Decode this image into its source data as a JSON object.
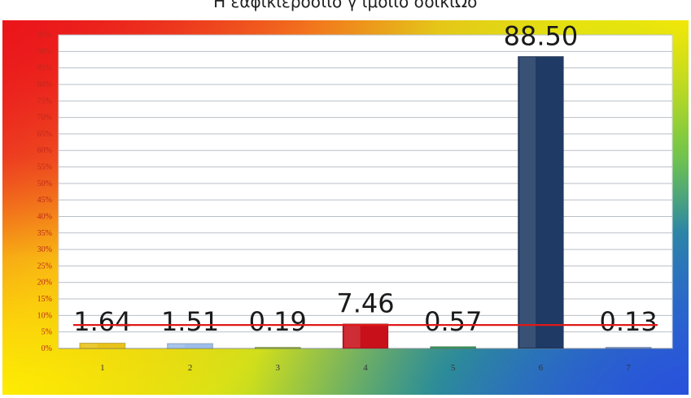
{
  "header": {
    "caption": "Η εαφικιεροσιιο γ ιμοιιο σοικιΩσ"
  },
  "chart_data": {
    "type": "bar",
    "categories": [
      "1",
      "2",
      "3",
      "4",
      "5",
      "6",
      "7"
    ],
    "values": [
      1.64,
      1.51,
      0.19,
      7.46,
      0.57,
      88.5,
      0.13
    ],
    "data_labels": [
      "1.64",
      "1.51",
      "0.19",
      "7.46",
      "0.57",
      "88.50",
      "0.13"
    ],
    "colors": [
      "#e8c21a",
      "#9dbde8",
      "#8fae3c",
      "#c8101a",
      "#3a9a5c",
      "#1f3a64",
      "#7a9ad8"
    ],
    "y_ticks": [
      "0%",
      "5%",
      "10%",
      "15%",
      "20%",
      "25%",
      "30%",
      "35%",
      "40%",
      "45%",
      "50%",
      "55%",
      "60%",
      "65%",
      "70%",
      "75%",
      "80%",
      "85%",
      "90%",
      "95%"
    ],
    "ylim": [
      0,
      95
    ],
    "reference_line": {
      "value": 7.1,
      "color": "#e01818"
    },
    "grid": true,
    "title": "",
    "xlabel": "",
    "ylabel": ""
  }
}
